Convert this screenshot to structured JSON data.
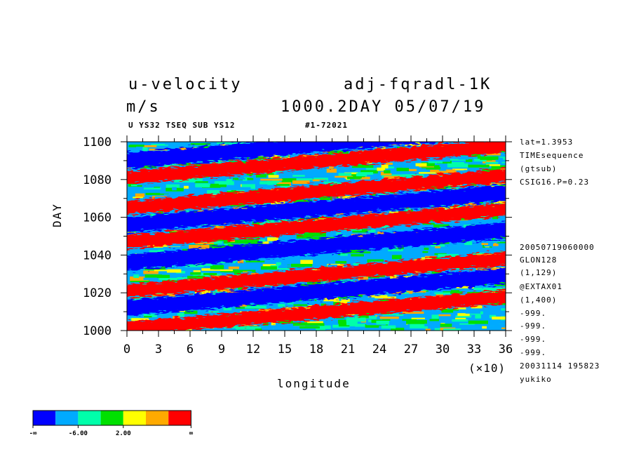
{
  "header": {
    "variable": "u-velocity",
    "run_name": "adj-fqradl-1K",
    "units": "m/s",
    "time_stamp": "1000.2DAY 05/07/19",
    "subtitle_left": "U YS32 TSEQ SUB YS12",
    "subtitle_right": "#1-72021"
  },
  "side_info": {
    "top": [
      "lat=1.3953",
      "TIMEsequence",
      "(gtsub)",
      "CSIG16.P=0.23"
    ],
    "bottom": [
      "20050719060000",
      "GLON128",
      "(1,129)",
      "@EXTAX01",
      "(1,400)",
      "-999.",
      "-999.",
      "-999.",
      "-999.",
      "20031114 195823",
      "yukiko"
    ]
  },
  "axis": {
    "x_multiplier": "(×10)"
  },
  "colorbar": {
    "labels": [
      "-∞",
      "-6.00",
      "2.00",
      "∞"
    ],
    "colors": [
      "#0000ff",
      "#00aaff",
      "#00ffaa",
      "#00e000",
      "#ffff00",
      "#ffaa00",
      "#ff0000"
    ]
  },
  "chart_data": {
    "type": "heatmap",
    "xlabel": "longitude",
    "ylabel": "DAY",
    "xlim": [
      0,
      36
    ],
    "ylim": [
      1000,
      1100
    ],
    "x_ticks": [
      "0",
      "3",
      "6",
      "9",
      "12",
      "15",
      "18",
      "21",
      "24",
      "27",
      "30",
      "33",
      "36"
    ],
    "y_ticks": [
      "1000",
      "1020",
      "1040",
      "1060",
      "1080",
      "1100"
    ],
    "color_levels": [
      "-∞",
      "-6.00",
      "2.00",
      "∞"
    ],
    "description_bands": "diagonal alternating blue (negative) and red (positive) bands propagating eastward",
    "bands": [
      {
        "sign": "positive",
        "day_at_x0": 1001,
        "day_at_x36": 1018
      },
      {
        "sign": "positive",
        "day_at_x0": 1021,
        "day_at_x36": 1038
      },
      {
        "sign": "positive",
        "day_at_x0": 1047,
        "day_at_x36": 1064
      },
      {
        "sign": "positive",
        "day_at_x0": 1065,
        "day_at_x36": 1082
      },
      {
        "sign": "positive",
        "day_at_x0": 1081,
        "day_at_x36": 1098
      },
      {
        "sign": "negative",
        "day_at_x0": 1012,
        "day_at_x36": 1029
      },
      {
        "sign": "negative",
        "day_at_x0": 1036,
        "day_at_x36": 1053
      },
      {
        "sign": "negative",
        "day_at_x0": 1056,
        "day_at_x36": 1073
      },
      {
        "sign": "negative",
        "day_at_x0": 1090,
        "day_at_x36": 1107
      }
    ]
  }
}
